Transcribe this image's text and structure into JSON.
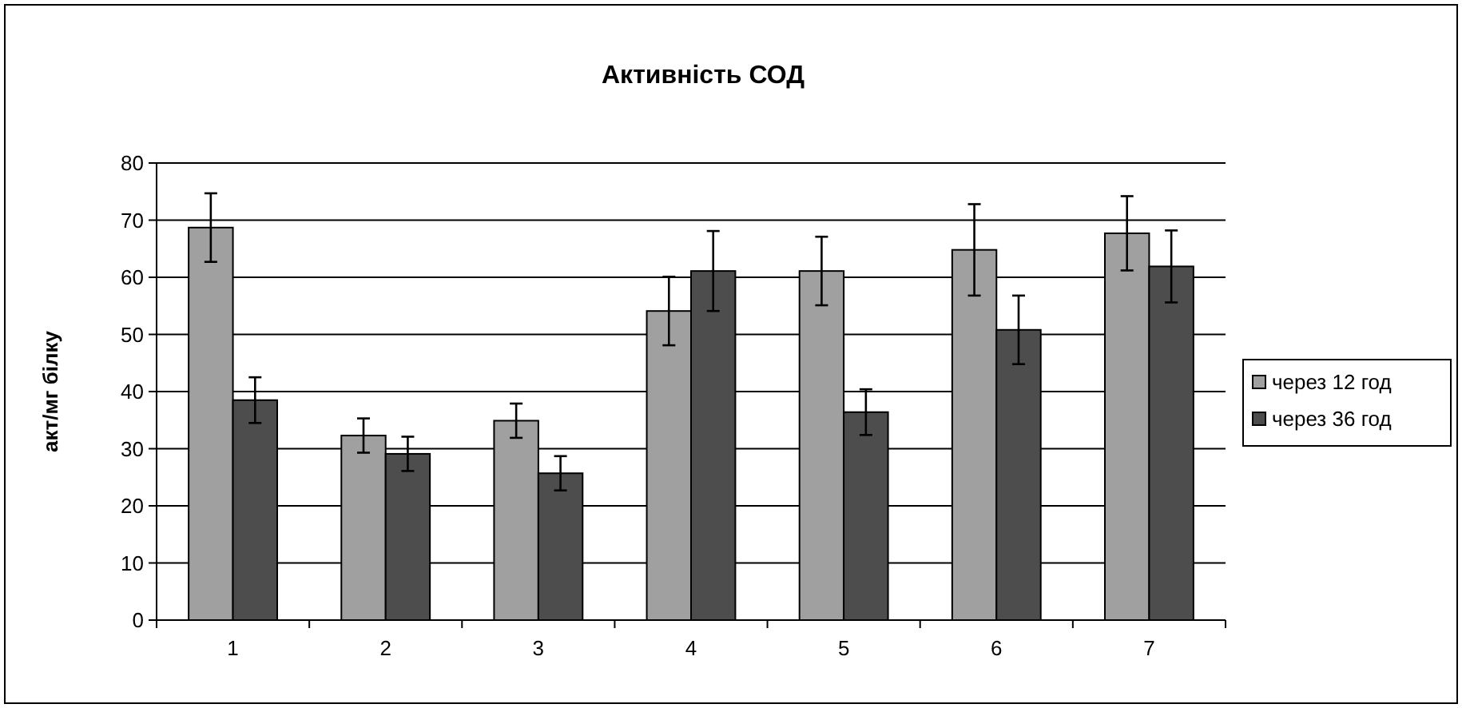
{
  "chart_data": {
    "type": "bar",
    "title": "Активність СОД",
    "ylabel": "акт/мг білку",
    "categories": [
      "1",
      "2",
      "3",
      "4",
      "5",
      "6",
      "7"
    ],
    "series": [
      {
        "name": "через 12 год",
        "color": "#a0a0a0",
        "values": [
          68.7,
          32.3,
          34.9,
          54.1,
          61.1,
          64.8,
          67.7
        ],
        "errors": [
          6,
          3,
          3,
          6,
          6,
          8,
          6.5
        ]
      },
      {
        "name": "через 36 год",
        "color": "#4d4d4d",
        "values": [
          38.5,
          29.1,
          25.7,
          61.1,
          36.4,
          50.8,
          61.9
        ],
        "errors": [
          4,
          3,
          3,
          7,
          4,
          6,
          6.3
        ]
      }
    ],
    "ylim": [
      0,
      80
    ],
    "yticks": [
      0,
      10,
      20,
      30,
      40,
      50,
      60,
      70,
      80
    ],
    "grid": "y",
    "legend": "right"
  }
}
